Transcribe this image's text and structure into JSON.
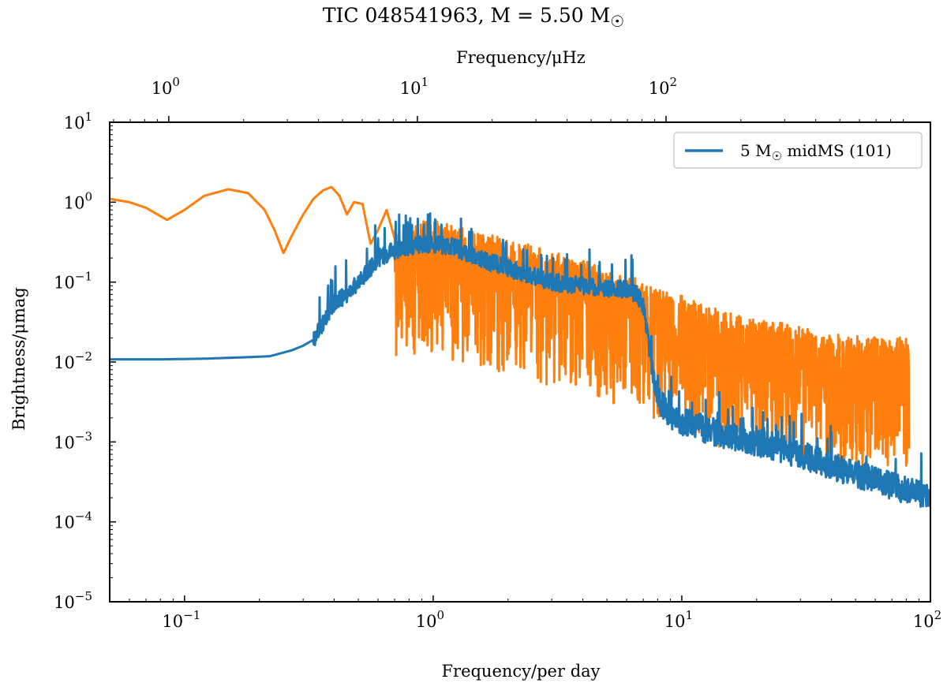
{
  "chart_data": {
    "type": "line",
    "title": "TIC 048541963, M = 5.50 M☉",
    "title_text": "TIC 048541963, M = 5.50 M",
    "title_symbol": "☉",
    "xlabel": "Frequency/per day",
    "ylabel": "Brightness/μmag",
    "top_xlabel": "Frequency/μHz",
    "xscale": "log",
    "yscale": "log",
    "xlim": [
      0.05,
      100
    ],
    "ylim": [
      1e-05,
      10
    ],
    "top_xlim": [
      0.5787,
      1157.4
    ],
    "x_ticks": [
      {
        "value": 0.1,
        "base": "10",
        "exp": "−1"
      },
      {
        "value": 1,
        "base": "10",
        "exp": "0"
      },
      {
        "value": 10,
        "base": "10",
        "exp": "1"
      },
      {
        "value": 100,
        "base": "10",
        "exp": "2"
      }
    ],
    "y_ticks": [
      {
        "value": 1e-05,
        "base": "10",
        "exp": "−5"
      },
      {
        "value": 0.0001,
        "base": "10",
        "exp": "−4"
      },
      {
        "value": 0.001,
        "base": "10",
        "exp": "−3"
      },
      {
        "value": 0.01,
        "base": "10",
        "exp": "−2"
      },
      {
        "value": 0.1,
        "base": "10",
        "exp": "−1"
      },
      {
        "value": 1,
        "base": "10",
        "exp": "0"
      },
      {
        "value": 10,
        "base": "10",
        "exp": "1"
      }
    ],
    "top_ticks": [
      {
        "value": 1,
        "base": "10",
        "exp": "0"
      },
      {
        "value": 10,
        "base": "10",
        "exp": "1"
      },
      {
        "value": 100,
        "base": "10",
        "exp": "2"
      }
    ],
    "legend": {
      "position": "upper right",
      "label_prefix": "5 M",
      "label_symbol": "☉",
      "label_suffix": " midMS (101)"
    },
    "series": [
      {
        "name": "5 M☉ midMS (101)",
        "color": "#1f77b4",
        "x": [
          0.05,
          0.08,
          0.12,
          0.18,
          0.22,
          0.27,
          0.3,
          0.33,
          0.345,
          0.36,
          0.38,
          0.4,
          0.42,
          0.45,
          0.5,
          0.55,
          0.6,
          0.7,
          0.8,
          0.9,
          1.0,
          1.2,
          1.5,
          2.0,
          3.0,
          4.0,
          5.0,
          6.0,
          6.6,
          7.0,
          7.3,
          7.6,
          8.0,
          9.0,
          10.0,
          12.0,
          15.0,
          20.0,
          30.0,
          50.0,
          80.0,
          100.0
        ],
        "y": [
          0.0108,
          0.0108,
          0.011,
          0.0115,
          0.0118,
          0.014,
          0.016,
          0.019,
          0.025,
          0.03,
          0.04,
          0.055,
          0.06,
          0.07,
          0.1,
          0.14,
          0.2,
          0.25,
          0.28,
          0.3,
          0.3,
          0.28,
          0.2,
          0.15,
          0.1,
          0.09,
          0.085,
          0.08,
          0.07,
          0.05,
          0.02,
          0.008,
          0.0035,
          0.0022,
          0.0018,
          0.0015,
          0.0012,
          0.001,
          0.0007,
          0.0004,
          0.00025,
          0.0002
        ]
      },
      {
        "name": "TIC 048541963",
        "color": "#ff7f0e",
        "x": [
          0.05,
          0.06,
          0.07,
          0.085,
          0.1,
          0.12,
          0.15,
          0.18,
          0.21,
          0.23,
          0.25,
          0.27,
          0.3,
          0.33,
          0.36,
          0.39,
          0.42,
          0.45,
          0.48,
          0.52,
          0.56,
          0.6,
          0.65,
          0.7,
          0.75,
          0.8,
          0.9,
          1.0,
          1.2,
          1.5,
          2.0,
          3.0,
          4.0,
          5.0,
          6.0,
          7.0,
          8.0,
          10.0,
          15.0,
          20.0,
          30.0,
          50.0,
          80.0,
          82.0
        ],
        "y": [
          1.1,
          1.0,
          0.85,
          0.6,
          0.8,
          1.2,
          1.45,
          1.3,
          0.8,
          0.45,
          0.23,
          0.38,
          0.7,
          1.1,
          1.4,
          1.55,
          1.2,
          0.7,
          1.0,
          0.95,
          0.3,
          0.45,
          0.8,
          0.35,
          0.25,
          0.4,
          0.4,
          0.45,
          0.38,
          0.3,
          0.25,
          0.17,
          0.14,
          0.1,
          0.09,
          0.07,
          0.06,
          0.05,
          0.03,
          0.025,
          0.02,
          0.015,
          0.015,
          0.015
        ],
        "noisy_band": {
          "start": 0.7,
          "end": 82.0,
          "seed": 7
        }
      }
    ]
  }
}
